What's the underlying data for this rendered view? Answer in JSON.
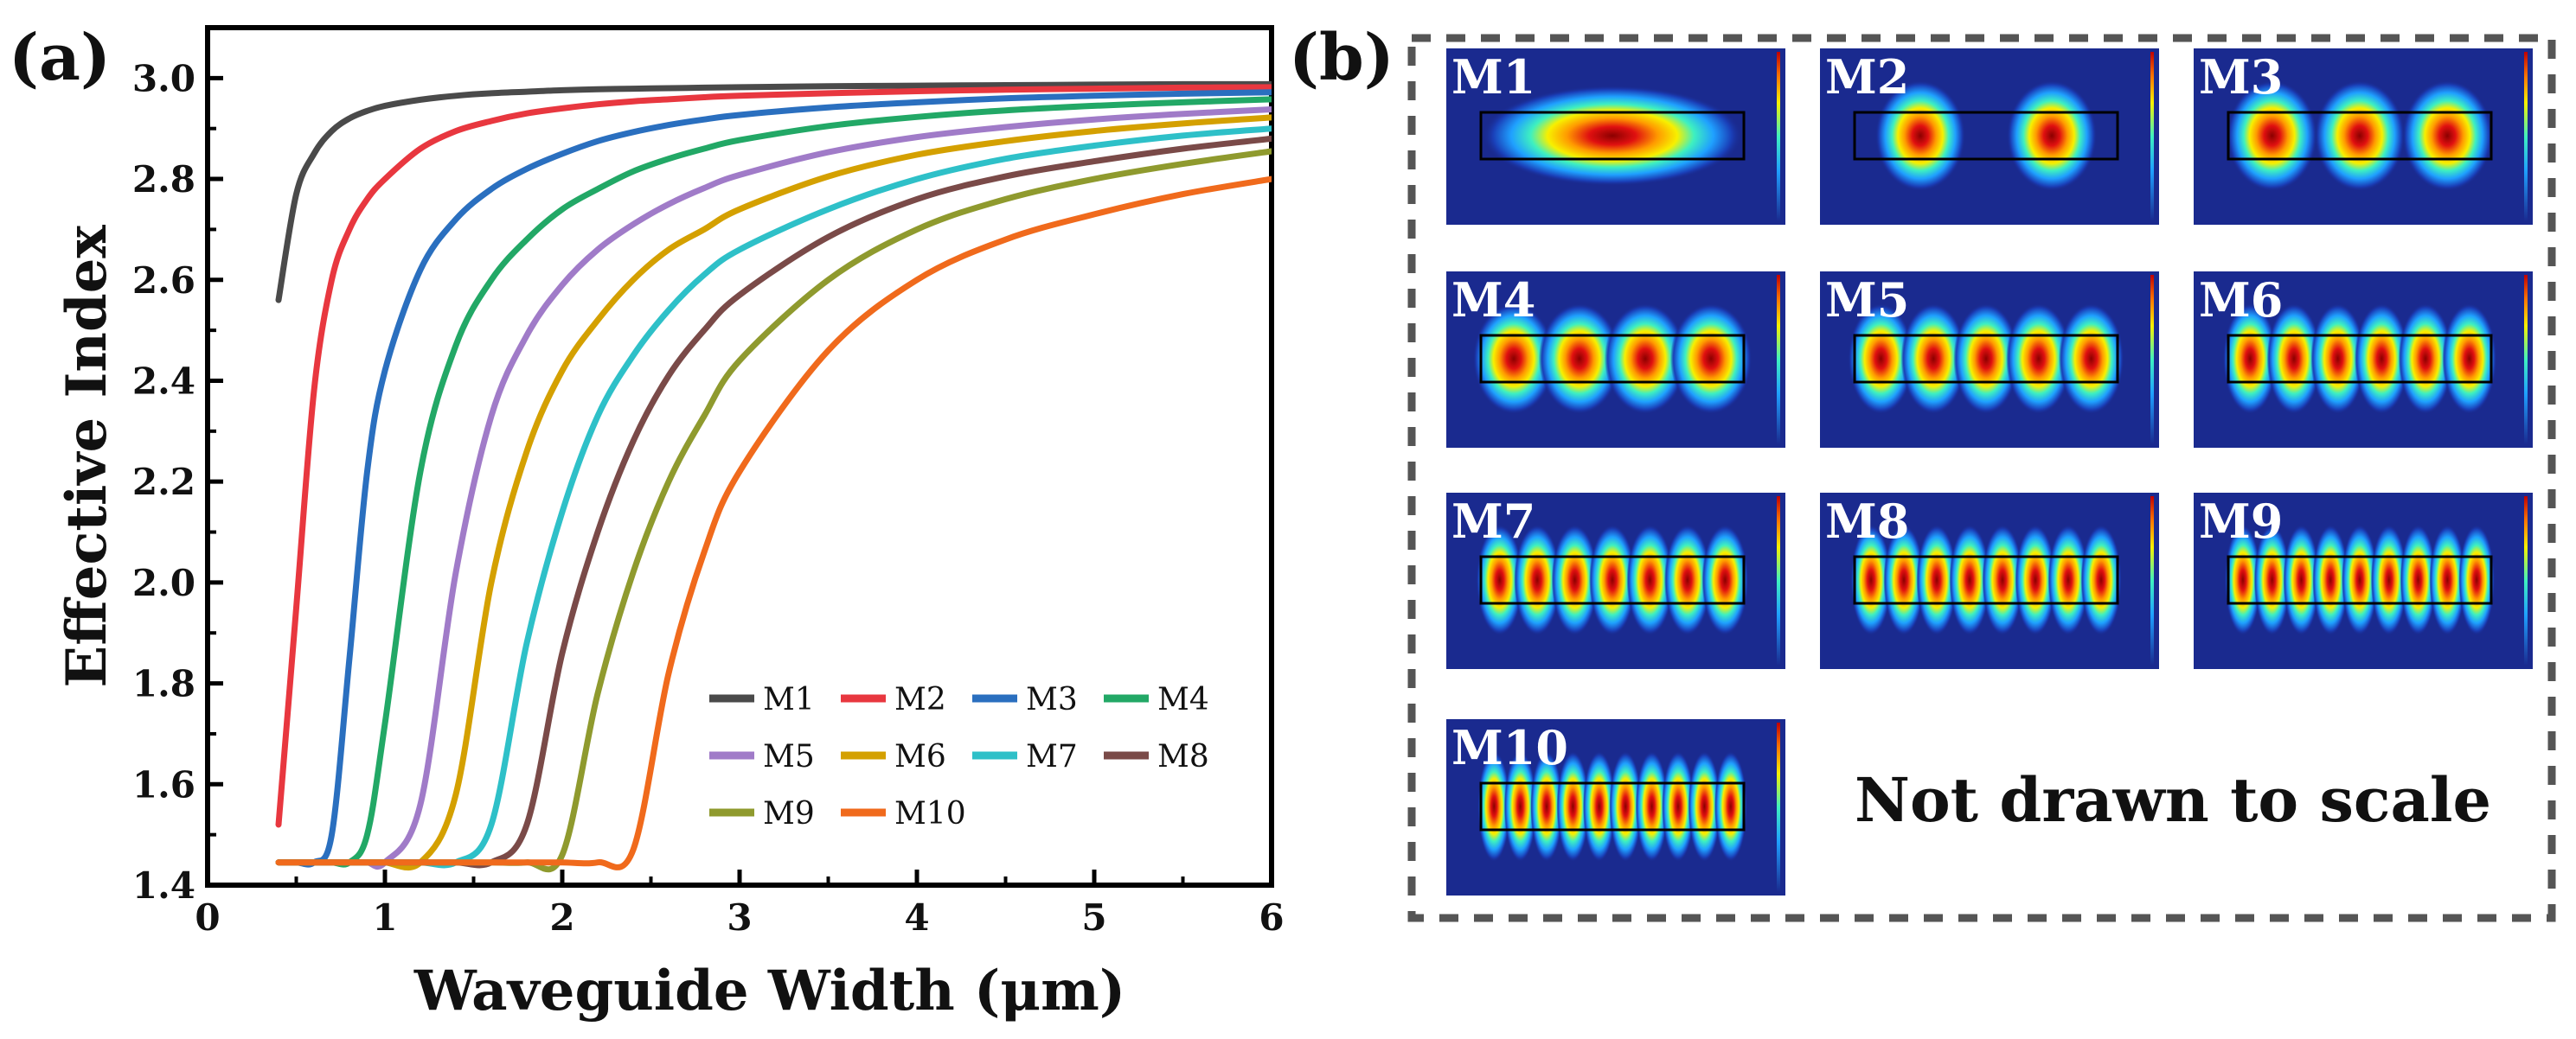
{
  "panels": {
    "a_label": "(a)",
    "b_label": "(b)"
  },
  "chart_data": {
    "type": "line",
    "title": "",
    "xlabel": "Waveguide Width (μm)",
    "ylabel": "Effective Index",
    "xlim": [
      0,
      6
    ],
    "ylim": [
      1.4,
      3.1
    ],
    "xticks": [
      "0",
      "1",
      "2",
      "3",
      "4",
      "5",
      "6"
    ],
    "yticks": [
      "1.4",
      "1.6",
      "1.8",
      "2.0",
      "2.2",
      "2.4",
      "2.6",
      "2.8",
      "3.0"
    ],
    "grid": false,
    "legend_position": "bottom-right",
    "x": [
      0.4,
      0.5,
      0.6,
      0.7,
      0.8,
      0.9,
      1.0,
      1.2,
      1.4,
      1.6,
      1.8,
      2.0,
      2.2,
      2.4,
      2.6,
      2.8,
      3.0,
      3.5,
      4.0,
      4.5,
      5.0,
      5.5,
      6.0
    ],
    "series": [
      {
        "name": "M1",
        "color": "#4a4a4a",
        "values": [
          2.56,
          2.77,
          2.85,
          2.895,
          2.92,
          2.935,
          2.945,
          2.957,
          2.965,
          2.97,
          2.973,
          2.976,
          2.978,
          2.979,
          2.98,
          2.981,
          2.982,
          2.984,
          2.985,
          2.986,
          2.987,
          2.988,
          2.988
        ]
      },
      {
        "name": "M2",
        "color": "#e8373f",
        "values": [
          1.52,
          1.95,
          2.38,
          2.6,
          2.7,
          2.76,
          2.8,
          2.86,
          2.895,
          2.915,
          2.93,
          2.94,
          2.948,
          2.954,
          2.958,
          2.962,
          2.965,
          2.97,
          2.974,
          2.977,
          2.979,
          2.981,
          2.982
        ]
      },
      {
        "name": "M3",
        "color": "#2a6fbf",
        "values": [
          1.445,
          1.445,
          1.445,
          1.5,
          1.85,
          2.22,
          2.42,
          2.62,
          2.72,
          2.78,
          2.82,
          2.85,
          2.875,
          2.893,
          2.907,
          2.918,
          2.927,
          2.942,
          2.952,
          2.96,
          2.965,
          2.969,
          2.972
        ]
      },
      {
        "name": "M4",
        "color": "#22a866",
        "values": [
          1.445,
          1.445,
          1.445,
          1.445,
          1.445,
          1.5,
          1.72,
          2.22,
          2.47,
          2.6,
          2.68,
          2.74,
          2.78,
          2.815,
          2.84,
          2.86,
          2.877,
          2.905,
          2.923,
          2.936,
          2.945,
          2.952,
          2.958
        ]
      },
      {
        "name": "M5",
        "color": "#a07bc8",
        "values": [
          1.445,
          1.445,
          1.445,
          1.445,
          1.445,
          1.445,
          1.445,
          1.56,
          2.02,
          2.33,
          2.49,
          2.59,
          2.66,
          2.71,
          2.75,
          2.782,
          2.808,
          2.853,
          2.883,
          2.903,
          2.918,
          2.929,
          2.938
        ]
      },
      {
        "name": "M6",
        "color": "#d4a000",
        "values": [
          1.445,
          1.445,
          1.445,
          1.445,
          1.445,
          1.445,
          1.445,
          1.445,
          1.58,
          2.0,
          2.26,
          2.42,
          2.52,
          2.6,
          2.66,
          2.7,
          2.74,
          2.805,
          2.848,
          2.875,
          2.895,
          2.91,
          2.922
        ]
      },
      {
        "name": "M7",
        "color": "#2ec0c8",
        "values": [
          1.445,
          1.445,
          1.445,
          1.445,
          1.445,
          1.445,
          1.445,
          1.445,
          1.445,
          1.52,
          1.88,
          2.14,
          2.33,
          2.45,
          2.54,
          2.61,
          2.66,
          2.74,
          2.8,
          2.84,
          2.866,
          2.886,
          2.9
        ]
      },
      {
        "name": "M8",
        "color": "#7a4a48",
        "values": [
          1.445,
          1.445,
          1.445,
          1.445,
          1.445,
          1.445,
          1.445,
          1.445,
          1.445,
          1.445,
          1.52,
          1.86,
          2.1,
          2.28,
          2.41,
          2.5,
          2.57,
          2.685,
          2.76,
          2.805,
          2.835,
          2.86,
          2.88
        ]
      },
      {
        "name": "M9",
        "color": "#8f9a2e",
        "values": [
          1.445,
          1.445,
          1.445,
          1.445,
          1.445,
          1.445,
          1.445,
          1.445,
          1.445,
          1.445,
          1.445,
          1.46,
          1.78,
          2.02,
          2.2,
          2.33,
          2.44,
          2.6,
          2.7,
          2.76,
          2.8,
          2.83,
          2.855
        ]
      },
      {
        "name": "M10",
        "color": "#f06a1c",
        "values": [
          1.445,
          1.445,
          1.445,
          1.445,
          1.445,
          1.445,
          1.445,
          1.445,
          1.445,
          1.445,
          1.445,
          1.445,
          1.445,
          1.47,
          1.82,
          2.06,
          2.22,
          2.46,
          2.6,
          2.68,
          2.73,
          2.77,
          2.8
        ]
      }
    ]
  },
  "mode_profiles": {
    "modes": [
      {
        "label": "M1",
        "lobes": 1
      },
      {
        "label": "M2",
        "lobes": 2
      },
      {
        "label": "M3",
        "lobes": 3
      },
      {
        "label": "M4",
        "lobes": 4
      },
      {
        "label": "M5",
        "lobes": 5
      },
      {
        "label": "M6",
        "lobes": 6
      },
      {
        "label": "M7",
        "lobes": 7
      },
      {
        "label": "M8",
        "lobes": 8
      },
      {
        "label": "M9",
        "lobes": 9
      },
      {
        "label": "M10",
        "lobes": 10
      }
    ],
    "note": "Not drawn to scale"
  }
}
